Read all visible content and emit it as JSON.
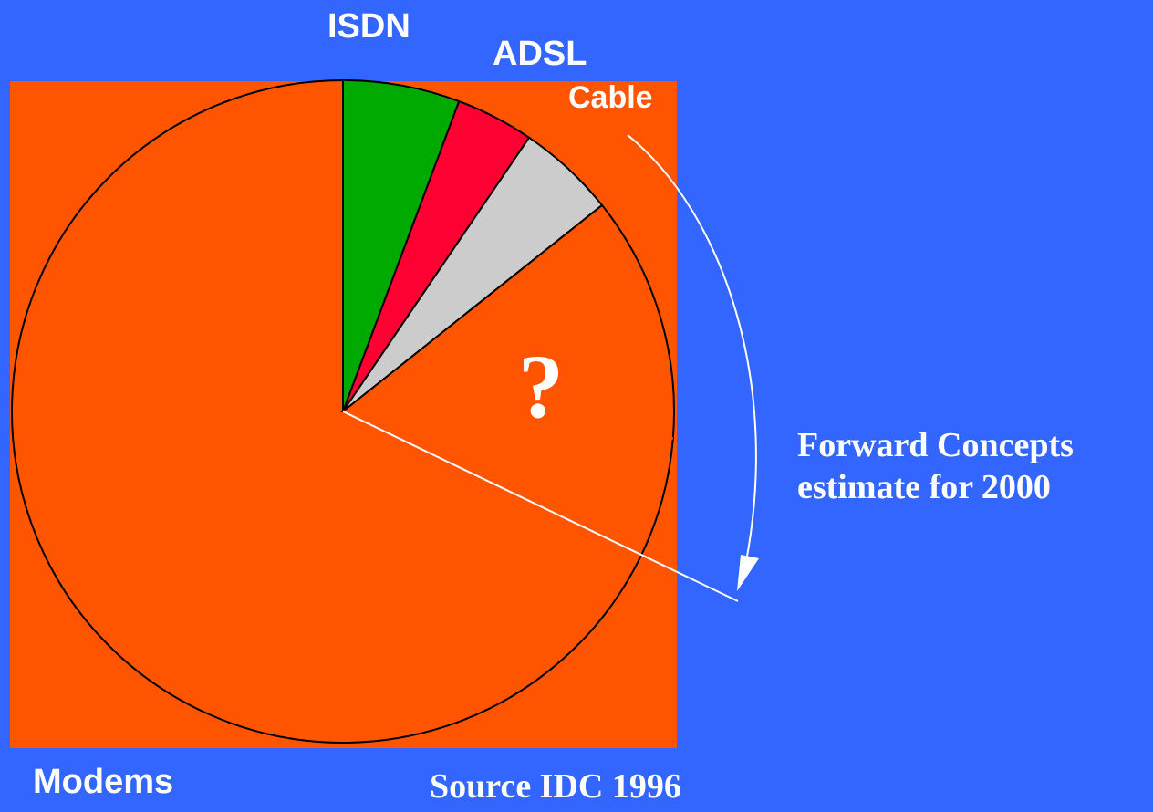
{
  "chart_data": {
    "type": "pie",
    "categories": [
      "Modems",
      "ISDN",
      "ADSL",
      "Cable",
      "?"
    ],
    "values": [
      73.7,
      5.7,
      3.8,
      4.8,
      12.0
    ],
    "colors": [
      "#ff5500",
      "#00aa00",
      "#ff0033",
      "#cccccc",
      "#ff5500"
    ],
    "background": "#ff5500",
    "page_background": "#3366ff",
    "unknown_label": "?",
    "annotation": "Forward Concepts estimate for 2000",
    "source": "Source IDC 1996"
  },
  "labels": {
    "isdn": "ISDN",
    "adsl": "ADSL",
    "cable": "Cable",
    "modems": "Modems"
  },
  "notes": {
    "forward_line1": "Forward Concepts",
    "forward_line2": "estimate for 2000",
    "source": "Source IDC 1996"
  }
}
